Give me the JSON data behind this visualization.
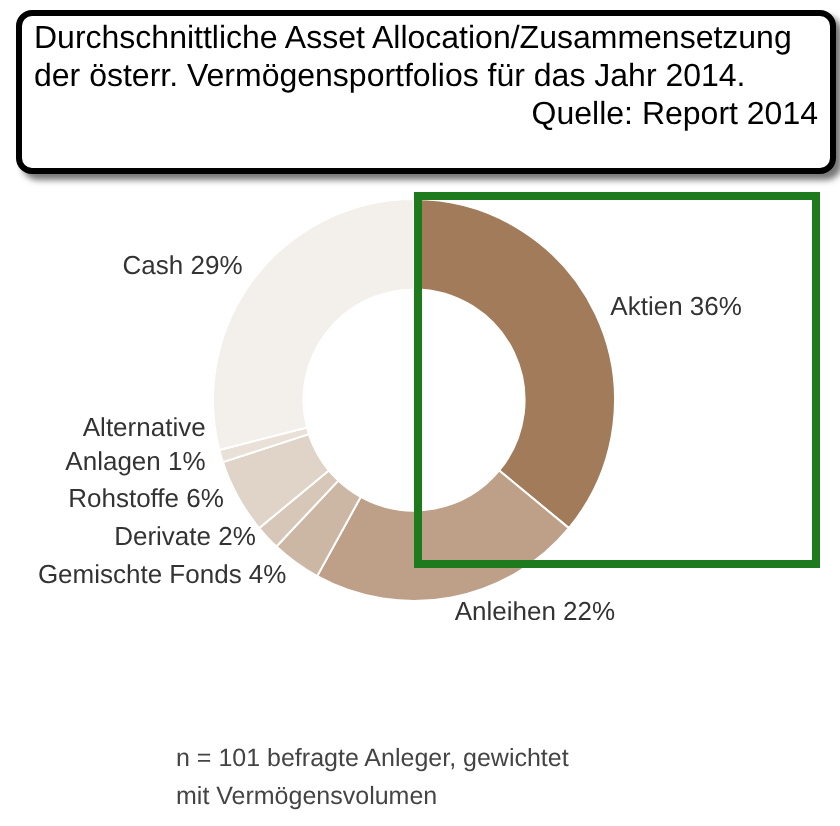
{
  "chart_data": {
    "type": "donut",
    "title": "Durchschnittliche Asset Allocation/Zusammensetzung der österr. Vermögensportfolios für das Jahr 2014.",
    "annotations": [
      "Quelle: Report 2014",
      "n = 101 befragte Anleger, gewichtet mit Vermögensvolumen"
    ],
    "categories": [
      "Aktien",
      "Anleihen",
      "Gemischte Fonds",
      "Derivate",
      "Rohstoffe",
      "Alternative Anlagen",
      "Cash"
    ],
    "values": [
      36,
      22,
      4,
      2,
      6,
      1,
      29
    ],
    "value_labels": [
      "36%",
      "22%",
      "4%",
      "2%",
      "6%",
      "1%",
      "29%"
    ],
    "colors": [
      "#a27c5a",
      "#bea088",
      "#ccb7a4",
      "#d7c7b8",
      "#e0d4c8",
      "#e9e0d7",
      "#f3efea"
    ],
    "legend": false
  }
}
